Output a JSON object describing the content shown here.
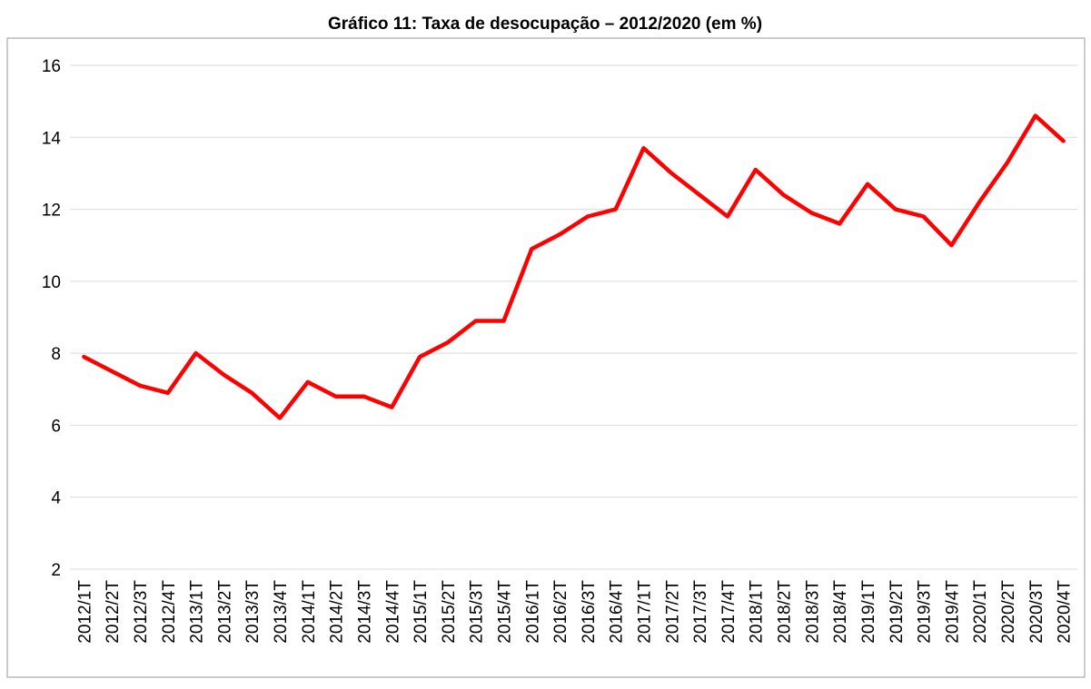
{
  "chart_data": {
    "type": "line",
    "title": "Gráfico 11: Taxa de desocupação – 2012/2020 (em %)",
    "categories": [
      "2012/1T",
      "2012/2T",
      "2012/3T",
      "2012/4T",
      "2013/1T",
      "2013/2T",
      "2013/3T",
      "2013/4T",
      "2014/1T",
      "2014/2T",
      "2014/3T",
      "2014/4T",
      "2015/1T",
      "2015/2T",
      "2015/3T",
      "2015/4T",
      "2016/1T",
      "2016/2T",
      "2016/3T",
      "2016/4T",
      "2017/1T",
      "2017/2T",
      "2017/3T",
      "2017/4T",
      "2018/1T",
      "2018/2T",
      "2018/3T",
      "2018/4T",
      "2019/1T",
      "2019/2T",
      "2019/3T",
      "2019/4T",
      "2020/1T",
      "2020/2T",
      "2020/3T",
      "2020/4T"
    ],
    "values": [
      7.9,
      7.5,
      7.1,
      6.9,
      8.0,
      7.4,
      6.9,
      6.2,
      7.2,
      6.8,
      6.8,
      6.5,
      7.9,
      8.3,
      8.9,
      8.9,
      10.9,
      11.3,
      11.8,
      12.0,
      13.7,
      13.0,
      12.4,
      11.8,
      13.1,
      12.4,
      11.9,
      11.6,
      12.7,
      12.0,
      11.8,
      11.0,
      12.2,
      13.3,
      14.6,
      13.9
    ],
    "color": "#ff0000",
    "ylim": [
      2,
      16
    ],
    "yticks": [
      2,
      4,
      6,
      8,
      10,
      12,
      14,
      16
    ],
    "grid": true
  }
}
